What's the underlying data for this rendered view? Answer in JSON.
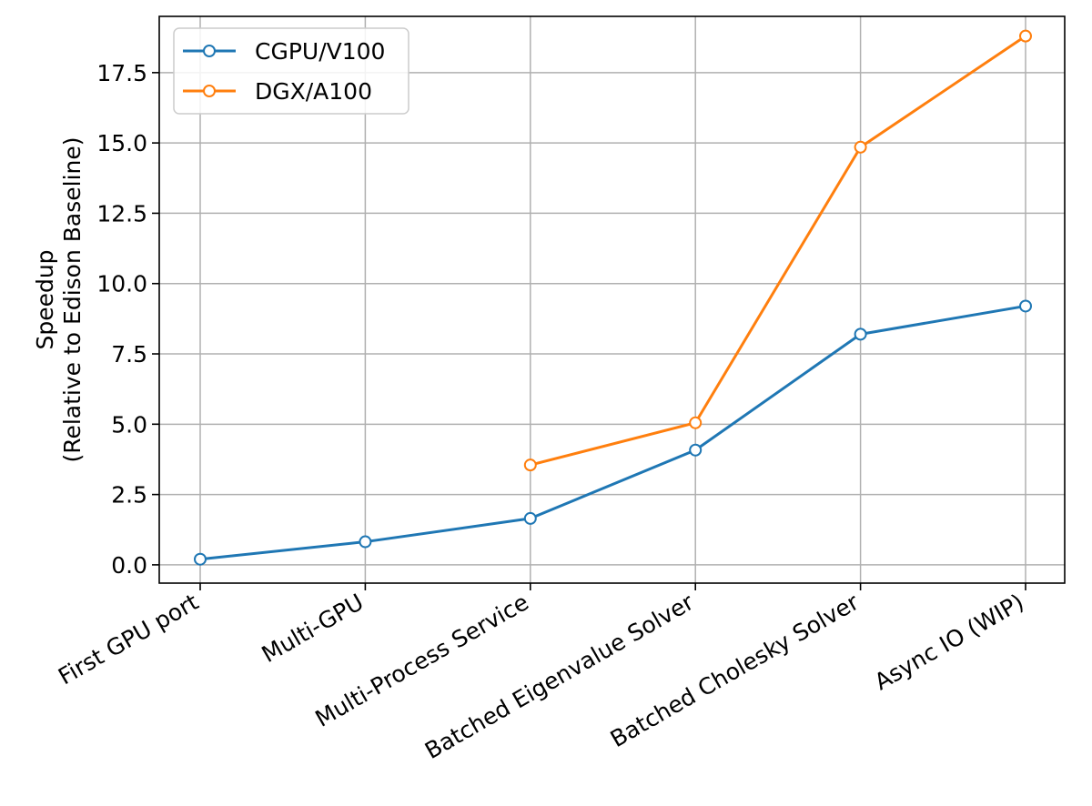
{
  "chart_data": {
    "type": "line",
    "title": "",
    "xlabel": "",
    "ylabel": "Speedup\n(Relative to Edison Baseline)",
    "categories": [
      "First GPU port",
      "Multi-GPU",
      "Multi-Process Service",
      "Batched Eigenvalue Solver",
      "Batched Cholesky Solver",
      "Async IO (WIP)"
    ],
    "ylim": [
      -0.65,
      19.5
    ],
    "yticks": [
      "0.0",
      "2.5",
      "5.0",
      "7.5",
      "10.0",
      "12.5",
      "15.0",
      "17.5"
    ],
    "grid": true,
    "legend_position": "top-left",
    "series": [
      {
        "name": "CGPU/V100",
        "color": "#1f77b4",
        "values": [
          0.2,
          0.82,
          1.65,
          4.08,
          8.2,
          9.2
        ]
      },
      {
        "name": "DGX/A100",
        "color": "#ff7f0e",
        "values": [
          null,
          null,
          3.55,
          5.05,
          14.85,
          18.8
        ]
      }
    ]
  }
}
